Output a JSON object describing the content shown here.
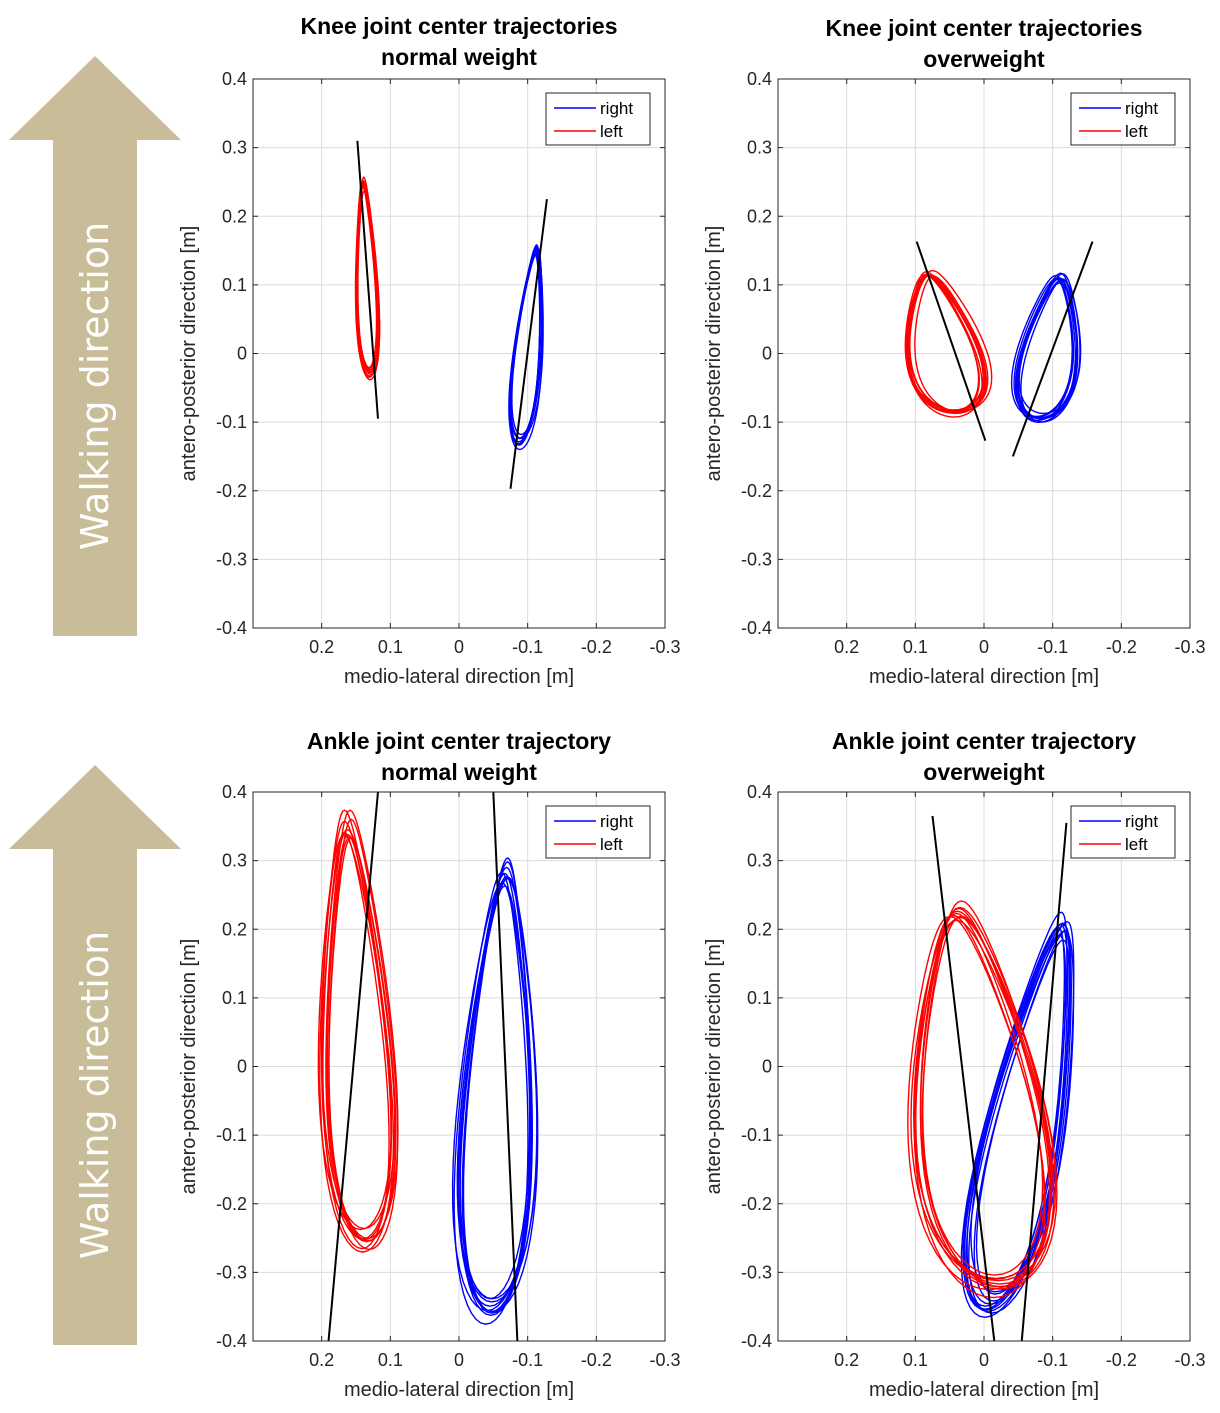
{
  "walking_arrow": {
    "label": "Walking direction",
    "color": "#c8bd98"
  },
  "chart_data": [
    {
      "type": "line",
      "title": "Knee joint center trajectories",
      "subtitle": "normal weight",
      "xlabel": "medio-lateral direction [m]",
      "ylabel": "antero-posterior direction [m]",
      "x_reversed": true,
      "xlim": [
        0.3,
        -0.3
      ],
      "ylim": [
        -0.4,
        0.4
      ],
      "xticks": [
        "0.2",
        "0.1",
        "0",
        "-0.1",
        "-0.2",
        "-0.3"
      ],
      "xtick_values": [
        0.2,
        0.1,
        0,
        -0.1,
        -0.2,
        -0.3
      ],
      "yticks": [
        "0.4",
        "0.3",
        "0.2",
        "0.1",
        "0",
        "-0.1",
        "-0.2",
        "-0.3",
        "-0.4"
      ],
      "ytick_values": [
        0.4,
        0.3,
        0.2,
        0.1,
        0,
        -0.1,
        -0.2,
        -0.3,
        -0.4
      ],
      "grid": true,
      "legend_position": "top-right",
      "series": [
        {
          "name": "right",
          "color": "#0000ff",
          "x_center": -0.1,
          "y_center": 0.01,
          "x_range": [
            -0.08,
            -0.125
          ],
          "y_range": [
            -0.135,
            0.16
          ],
          "tilt": -0.25,
          "cycles": 10
        },
        {
          "name": "left",
          "color": "#ff0000",
          "x_center": 0.135,
          "y_center": 0.1,
          "x_range": [
            0.115,
            0.15
          ],
          "y_range": [
            -0.035,
            0.255
          ],
          "tilt": 0.1,
          "cycles": 10
        }
      ],
      "fit_lines": [
        {
          "color": "#000000",
          "points": [
            [
              0.148,
              0.31
            ],
            [
              0.118,
              -0.095
            ]
          ]
        },
        {
          "color": "#000000",
          "points": [
            [
              -0.128,
              0.225
            ],
            [
              -0.075,
              -0.197
            ]
          ]
        }
      ]
    },
    {
      "type": "line",
      "title": "Knee joint center trajectories",
      "subtitle": "overweight",
      "xlabel": "medio-lateral direction [m]",
      "ylabel": "antero-posterior direction [m]",
      "x_reversed": true,
      "xlim": [
        0.3,
        -0.3
      ],
      "ylim": [
        -0.4,
        0.4
      ],
      "xticks": [
        "0.2",
        "0.1",
        "0",
        "-0.1",
        "-0.2",
        "-0.3"
      ],
      "xtick_values": [
        0.2,
        0.1,
        0,
        -0.1,
        -0.2,
        -0.3
      ],
      "yticks": [
        "0.4",
        "0.3",
        "0.2",
        "0.1",
        "0",
        "-0.1",
        "-0.2",
        "-0.3",
        "-0.4"
      ],
      "ytick_values": [
        0.4,
        0.3,
        0.2,
        0.1,
        0,
        -0.1,
        -0.2,
        -0.3,
        -0.4
      ],
      "grid": true,
      "legend_position": "top-right",
      "series": [
        {
          "name": "right",
          "color": "#0000ff",
          "x_center": -0.095,
          "y_center": 0.005,
          "x_range": [
            -0.05,
            -0.14
          ],
          "y_range": [
            -0.1,
            0.115
          ],
          "tilt": -0.4,
          "cycles": 10
        },
        {
          "name": "left",
          "color": "#ff0000",
          "x_center": 0.06,
          "y_center": 0.015,
          "x_range": [
            0.12,
            0.0
          ],
          "y_range": [
            -0.09,
            0.12
          ],
          "tilt": 0.55,
          "cycles": 10
        }
      ],
      "fit_lines": [
        {
          "color": "#000000",
          "points": [
            [
              0.098,
              0.163
            ],
            [
              -0.002,
              -0.127
            ]
          ]
        },
        {
          "color": "#000000",
          "points": [
            [
              -0.158,
              0.163
            ],
            [
              -0.042,
              -0.15
            ]
          ]
        }
      ]
    },
    {
      "type": "line",
      "title": "Ankle joint center trajectory",
      "subtitle": "normal weight",
      "xlabel": "medio-lateral direction [m]",
      "ylabel": "antero-posterior direction [m]",
      "x_reversed": true,
      "xlim": [
        0.3,
        -0.3
      ],
      "ylim": [
        -0.4,
        0.4
      ],
      "xticks": [
        "0.2",
        "0.1",
        "0",
        "-0.1",
        "-0.2",
        "-0.3"
      ],
      "xtick_values": [
        0.2,
        0.1,
        0,
        -0.1,
        -0.2,
        -0.3
      ],
      "yticks": [
        "0.4",
        "0.3",
        "0.2",
        "0.1",
        "0",
        "-0.1",
        "-0.2",
        "-0.3",
        "-0.4"
      ],
      "ytick_values": [
        0.4,
        0.3,
        0.2,
        0.1,
        0,
        -0.1,
        -0.2,
        -0.3,
        -0.4
      ],
      "grid": true,
      "legend_position": "top-right",
      "series": [
        {
          "name": "right",
          "color": "#0000ff",
          "x_center": -0.055,
          "y_center": -0.035,
          "x_range": [
            0.0,
            -0.12
          ],
          "y_range": [
            -0.37,
            0.3
          ],
          "tilt": -0.1,
          "cycles": 10
        },
        {
          "name": "left",
          "color": "#ff0000",
          "x_center": 0.15,
          "y_center": 0.05,
          "x_range": [
            0.2,
            0.09
          ],
          "y_range": [
            -0.265,
            0.365
          ],
          "tilt": 0.12,
          "cycles": 10
        }
      ],
      "fit_lines": [
        {
          "color": "#000000",
          "points": [
            [
              0.118,
              0.4
            ],
            [
              0.19,
              -0.4
            ]
          ]
        },
        {
          "color": "#000000",
          "points": [
            [
              -0.05,
              0.4
            ],
            [
              -0.085,
              -0.4
            ]
          ]
        }
      ]
    },
    {
      "type": "line",
      "title": "Ankle joint center trajectory",
      "subtitle": "overweight",
      "xlabel": "medio-lateral direction [m]",
      "ylabel": "antero-posterior direction [m]",
      "x_reversed": true,
      "xlim": [
        0.3,
        -0.3
      ],
      "ylim": [
        -0.4,
        0.4
      ],
      "xticks": [
        "0.2",
        "0.1",
        "0",
        "-0.1",
        "-0.2",
        "-0.3"
      ],
      "xtick_values": [
        0.2,
        0.1,
        0,
        -0.1,
        -0.2,
        -0.3
      ],
      "yticks": [
        "0.4",
        "0.3",
        "0.2",
        "0.1",
        "0",
        "-0.1",
        "-0.2",
        "-0.3",
        "-0.4"
      ],
      "ytick_values": [
        0.4,
        0.3,
        0.2,
        0.1,
        0,
        -0.1,
        -0.2,
        -0.3,
        -0.4
      ],
      "grid": true,
      "legend_position": "top-right",
      "series": [
        {
          "name": "right",
          "color": "#0000ff",
          "x_center": -0.06,
          "y_center": -0.065,
          "x_range": [
            0.0,
            -0.125
          ],
          "y_range": [
            -0.36,
            0.22
          ],
          "tilt": -0.55,
          "cycles": 10
        },
        {
          "name": "left",
          "color": "#ff0000",
          "x_center": 0.015,
          "y_center": -0.05,
          "x_range": [
            0.115,
            -0.1
          ],
          "y_range": [
            -0.335,
            0.235
          ],
          "tilt": 0.3,
          "cycles": 10
        }
      ],
      "fit_lines": [
        {
          "color": "#000000",
          "points": [
            [
              0.075,
              0.365
            ],
            [
              -0.015,
              -0.4
            ]
          ]
        },
        {
          "color": "#000000",
          "points": [
            [
              -0.12,
              0.355
            ],
            [
              -0.055,
              -0.4
            ]
          ]
        }
      ]
    }
  ]
}
